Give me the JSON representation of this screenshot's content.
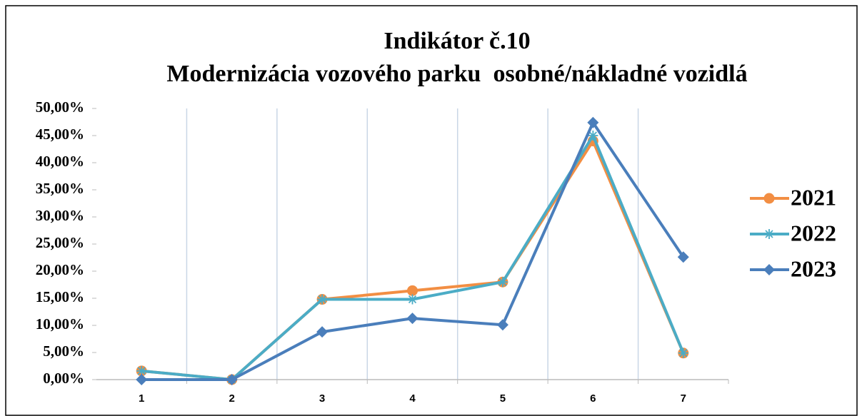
{
  "chart_data": {
    "type": "line",
    "title": "Indikátor č.10",
    "subtitle": "Modernizácia vozového parku  osobné/nákladné vozidlá",
    "categories": [
      "1",
      "2",
      "3",
      "4",
      "5",
      "6",
      "7"
    ],
    "series": [
      {
        "name": "2021",
        "color": "#f28e43",
        "marker": "circle",
        "values": [
          1.6,
          0,
          14.8,
          16.4,
          18,
          44,
          4.9
        ]
      },
      {
        "name": "2022",
        "color": "#4bacc6",
        "marker": "asterisk",
        "values": [
          1.6,
          0,
          14.8,
          14.8,
          18,
          45,
          4.9
        ]
      },
      {
        "name": "2023",
        "color": "#4a7ebb",
        "marker": "diamond",
        "values": [
          0,
          0,
          8.8,
          11.3,
          10.1,
          47.4,
          22.6
        ]
      }
    ],
    "ylim": [
      0,
      50
    ],
    "yticks": [
      {
        "value": 0,
        "label": "0,00%"
      },
      {
        "value": 5,
        "label": "5,00%"
      },
      {
        "value": 10,
        "label": "10,00%"
      },
      {
        "value": 15,
        "label": "15,00%"
      },
      {
        "value": 20,
        "label": "20,00%"
      },
      {
        "value": 25,
        "label": "25,00%"
      },
      {
        "value": 30,
        "label": "30,00%"
      },
      {
        "value": 35,
        "label": "35,00%"
      },
      {
        "value": 40,
        "label": "40,00%"
      },
      {
        "value": 45,
        "label": "45,00%"
      },
      {
        "value": 50,
        "label": "50,00%"
      }
    ],
    "legend": "right"
  }
}
